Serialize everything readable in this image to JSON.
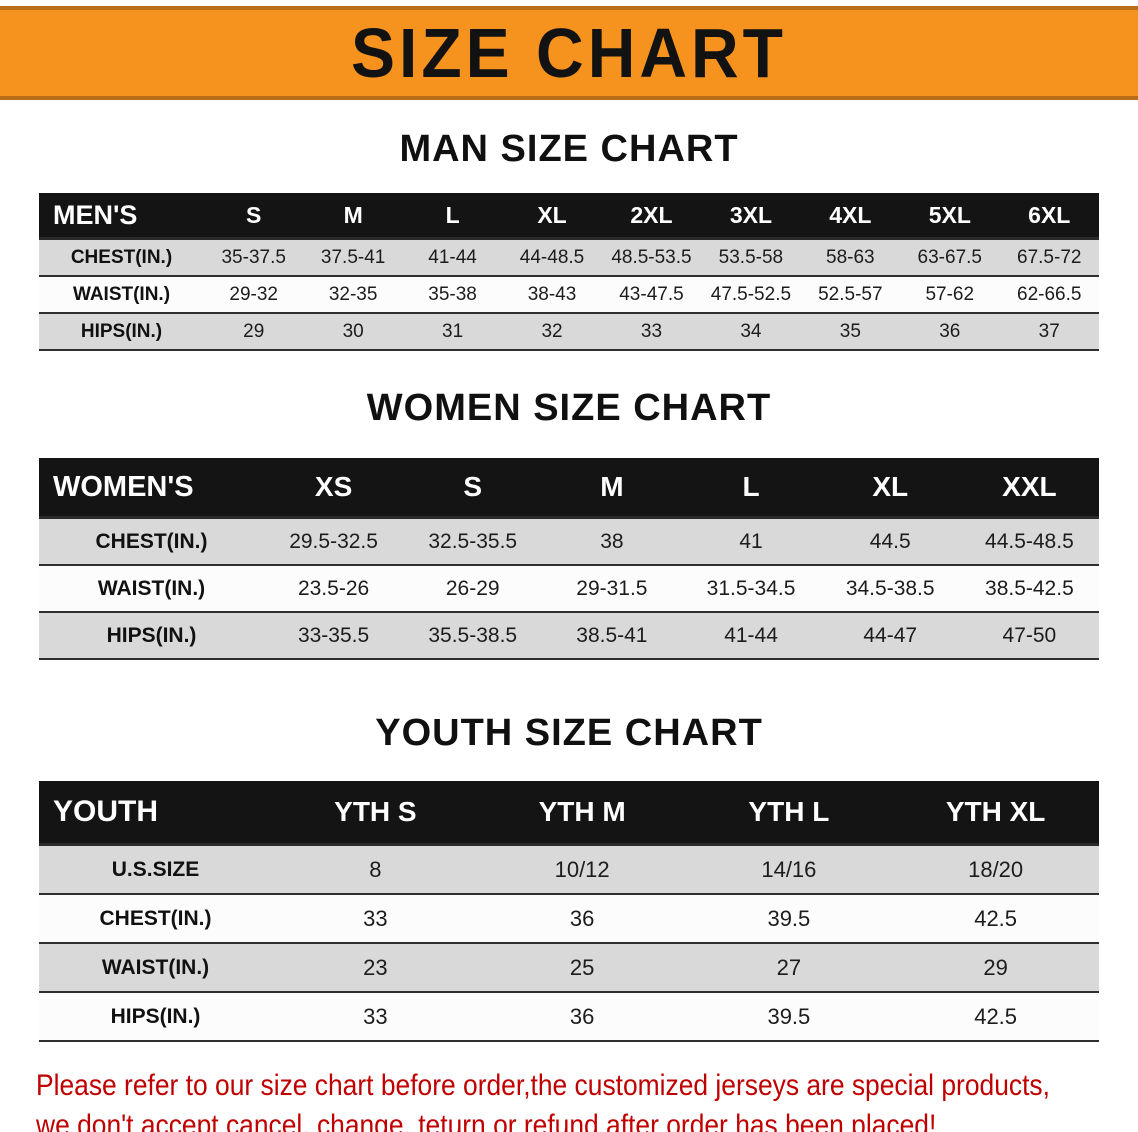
{
  "banner": {
    "title": "SIZE CHART",
    "bg_color": "#F6921E",
    "text_color": "#121212"
  },
  "sections": {
    "men": {
      "heading": "MAN SIZE CHART",
      "table": {
        "header": [
          "MEN'S",
          "S",
          "M",
          "L",
          "XL",
          "2XL",
          "3XL",
          "4XL",
          "5XL",
          "6XL"
        ],
        "rows": [
          [
            "CHEST(IN.)",
            "35-37.5",
            "37.5-41",
            "41-44",
            "44-48.5",
            "48.5-53.5",
            "53.5-58",
            "58-63",
            "63-67.5",
            "67.5-72"
          ],
          [
            "WAIST(IN.)",
            "29-32",
            "32-35",
            "35-38",
            "38-43",
            "43-47.5",
            "47.5-52.5",
            "52.5-57",
            "57-62",
            "62-66.5"
          ],
          [
            "HIPS(IN.)",
            "29",
            "30",
            "31",
            "32",
            "33",
            "34",
            "35",
            "36",
            "37"
          ]
        ]
      }
    },
    "women": {
      "heading": "WOMEN SIZE CHART",
      "table": {
        "header": [
          "WOMEN'S",
          "XS",
          "S",
          "M",
          "L",
          "XL",
          "XXL"
        ],
        "rows": [
          [
            "CHEST(IN.)",
            "29.5-32.5",
            "32.5-35.5",
            "38",
            "41",
            "44.5",
            "44.5-48.5"
          ],
          [
            "WAIST(IN.)",
            "23.5-26",
            "26-29",
            "29-31.5",
            "31.5-34.5",
            "34.5-38.5",
            "38.5-42.5"
          ],
          [
            "HIPS(IN.)",
            "33-35.5",
            "35.5-38.5",
            "38.5-41",
            "41-44",
            "44-47",
            "47-50"
          ]
        ]
      }
    },
    "youth": {
      "heading": "YOUTH SIZE CHART",
      "table": {
        "header": [
          "YOUTH",
          "YTH S",
          "YTH M",
          "YTH L",
          "YTH XL"
        ],
        "rows": [
          [
            "U.S.SIZE",
            "8",
            "10/12",
            "14/16",
            "18/20"
          ],
          [
            "CHEST(IN.)",
            "33",
            "36",
            "39.5",
            "42.5"
          ],
          [
            "WAIST(IN.)",
            "23",
            "25",
            "27",
            "29"
          ],
          [
            "HIPS(IN.)",
            "33",
            "36",
            "39.5",
            "42.5"
          ]
        ]
      }
    }
  },
  "footer": {
    "line1": "Please refer to our size chart before order,the customized jerseys are special products,",
    "line2": "we don't accept cancel, change, teturn or refund after order has been placed!",
    "text_color": "#c00000"
  }
}
